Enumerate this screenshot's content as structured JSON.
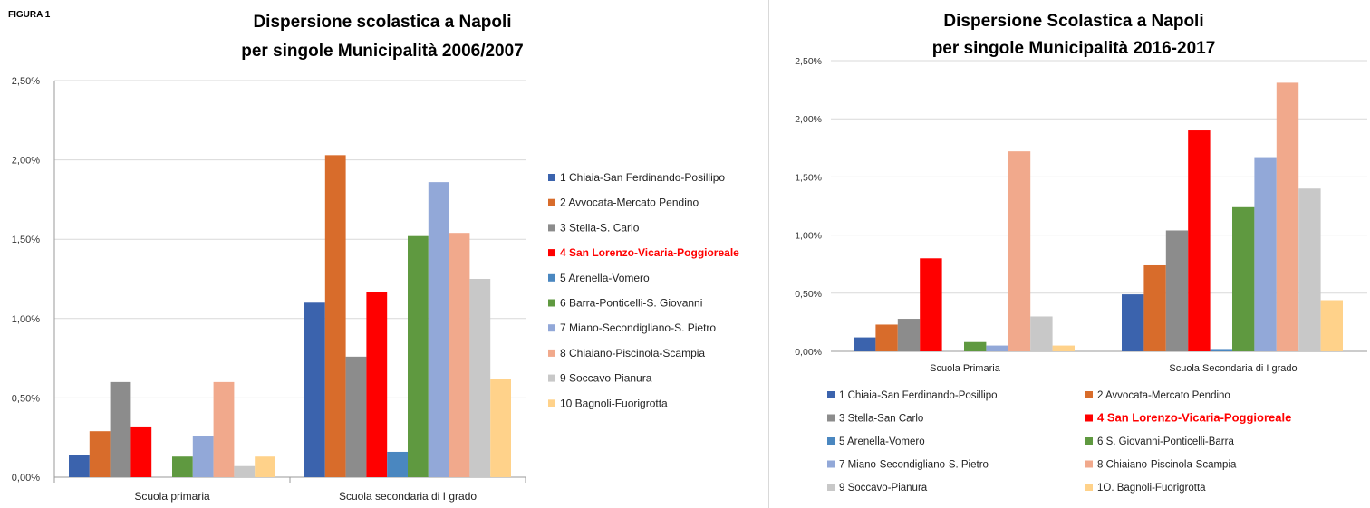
{
  "figure_label": "FIGURA 1",
  "chart_data": [
    {
      "type": "bar",
      "title": [
        "Dispersione scolastica a Napoli",
        "per singole Municipalità  2006/2007"
      ],
      "categories": [
        "Scuola primaria",
        "Scuola secondaria di I grado"
      ],
      "ylim": [
        0,
        0.025
      ],
      "yticks": [
        "0,00%",
        "0,50%",
        "1,00%",
        "1,50%",
        "2,00%",
        "2,50%"
      ],
      "grid": true,
      "legend_position": "right",
      "series": [
        {
          "name": "1 Chiaia-San Ferdinando-Posillipo",
          "color": "#3b63ad",
          "values": [
            0.0014,
            0.011
          ]
        },
        {
          "name": "2 Avvocata-Mercato Pendino",
          "color": "#d86c2b",
          "values": [
            0.0029,
            0.0203
          ]
        },
        {
          "name": "3 Stella-S. Carlo",
          "color": "#8c8c8c",
          "values": [
            0.006,
            0.0076
          ]
        },
        {
          "name": "4 San Lorenzo-Vicaria-Poggioreale",
          "color": "#ff0000",
          "values": [
            0.0032,
            0.0117
          ],
          "highlight": true
        },
        {
          "name": "5 Arenella-Vomero",
          "color": "#4a87c0",
          "values": [
            0,
            0.0016
          ]
        },
        {
          "name": "6 Barra-Ponticelli-S. Giovanni",
          "color": "#5f9940",
          "values": [
            0.0013,
            0.0152
          ]
        },
        {
          "name": "7 Miano-Secondigliano-S. Pietro",
          "color": "#92a8d8",
          "values": [
            0.0026,
            0.0186
          ]
        },
        {
          "name": "8 Chiaiano-Piscinola-Scampia",
          "color": "#f1a98c",
          "values": [
            0.006,
            0.0154
          ]
        },
        {
          "name": "9 Soccavo-Pianura",
          "color": "#c8c8c8",
          "values": [
            0.0007,
            0.0125
          ]
        },
        {
          "name": "10 Bagnoli-Fuorigrotta",
          "color": "#ffd28a",
          "values": [
            0.0013,
            0.0062
          ]
        }
      ]
    },
    {
      "type": "bar",
      "title": [
        "Dispersione Scolastica a Napoli",
        "per singole Municipalità 2016-2017"
      ],
      "categories": [
        "Scuola Primaria",
        "Scuola Secondaria di I grado"
      ],
      "ylim": [
        0,
        0.025
      ],
      "yticks": [
        "0,00%",
        "0,50%",
        "1,00%",
        "1,50%",
        "2,00%",
        "2,50%"
      ],
      "grid": true,
      "legend_position": "bottom",
      "series": [
        {
          "name": "1 Chiaia-San Ferdinando-Posillipo",
          "color": "#3b63ad",
          "values": [
            0.0012,
            0.0049
          ]
        },
        {
          "name": "2 Avvocata-Mercato Pendino",
          "color": "#d86c2b",
          "values": [
            0.0023,
            0.0074
          ]
        },
        {
          "name": "3 Stella-San Carlo",
          "color": "#8c8c8c",
          "values": [
            0.0028,
            0.0104
          ]
        },
        {
          "name": "4 San Lorenzo-Vicaria-Poggioreale",
          "color": "#ff0000",
          "values": [
            0.008,
            0.019
          ],
          "highlight": true
        },
        {
          "name": "5 Arenella-Vomero",
          "color": "#4a87c0",
          "values": [
            0,
            0.0002
          ]
        },
        {
          "name": "6 S. Giovanni-Ponticelli-Barra",
          "color": "#5f9940",
          "values": [
            0.0008,
            0.0124
          ]
        },
        {
          "name": "7 Miano-Secondigliano-S. Pietro",
          "color": "#92a8d8",
          "values": [
            0.0005,
            0.0167
          ]
        },
        {
          "name": "8 Chiaiano-Piscinola-Scampia",
          "color": "#f1a98c",
          "values": [
            0.0172,
            0.0231
          ]
        },
        {
          "name": "9 Soccavo-Pianura",
          "color": "#c8c8c8",
          "values": [
            0.003,
            0.014
          ]
        },
        {
          "name": "1O. Bagnoli-Fuorigrotta",
          "color": "#ffd28a",
          "values": [
            0.0005,
            0.0044
          ]
        }
      ]
    }
  ]
}
